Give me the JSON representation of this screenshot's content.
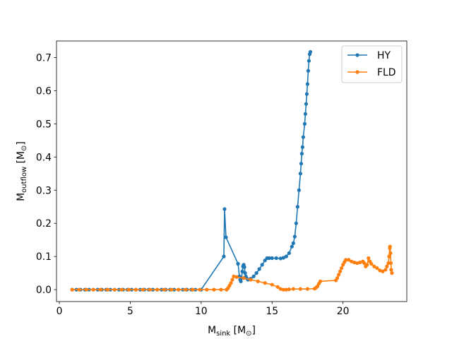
{
  "chart_data": {
    "type": "line",
    "xlabel": {
      "main": "M",
      "sub": "sink",
      "unit_open": " [M",
      "unit_sub": "⊙",
      "unit_close": "]"
    },
    "ylabel": {
      "main": "M",
      "sub": "outflow",
      "unit_open": " [M",
      "unit_sub": "⊙",
      "unit_close": "]"
    },
    "xlim": [
      -0.2,
      24.5
    ],
    "ylim": [
      -0.036,
      0.75
    ],
    "xticks": [
      0,
      5,
      10,
      15,
      20
    ],
    "xtick_labels": [
      "0",
      "5",
      "10",
      "15",
      "20"
    ],
    "yticks": [
      0.0,
      0.1,
      0.2,
      0.3,
      0.4,
      0.5,
      0.6,
      0.7
    ],
    "ytick_labels": [
      "0.0",
      "0.1",
      "0.2",
      "0.3",
      "0.4",
      "0.5",
      "0.6",
      "0.7"
    ],
    "grid": false,
    "legend_position": "top-right",
    "series": [
      {
        "name": "HY",
        "color": "#1f77b4",
        "marker": "circle",
        "points": [
          [
            0.9,
            0.0
          ],
          [
            1.2,
            0.0
          ],
          [
            1.5,
            0.0
          ],
          [
            1.8,
            0.0
          ],
          [
            2.1,
            0.0
          ],
          [
            2.4,
            0.0
          ],
          [
            2.7,
            0.0
          ],
          [
            3.0,
            0.0
          ],
          [
            3.3,
            0.0
          ],
          [
            3.6,
            0.0
          ],
          [
            3.9,
            0.0
          ],
          [
            4.2,
            0.0
          ],
          [
            4.5,
            0.0
          ],
          [
            4.8,
            0.0
          ],
          [
            5.1,
            0.0
          ],
          [
            5.4,
            0.0
          ],
          [
            5.7,
            0.0
          ],
          [
            6.0,
            0.0
          ],
          [
            6.3,
            0.0
          ],
          [
            6.6,
            0.0
          ],
          [
            6.9,
            0.0
          ],
          [
            7.2,
            0.0
          ],
          [
            7.5,
            0.0
          ],
          [
            7.8,
            0.0
          ],
          [
            8.1,
            0.0
          ],
          [
            8.4,
            0.0
          ],
          [
            8.7,
            0.0
          ],
          [
            9.0,
            0.0
          ],
          [
            9.3,
            0.0
          ],
          [
            9.6,
            0.0
          ],
          [
            10.0,
            0.0
          ],
          [
            11.6,
            0.1
          ],
          [
            11.65,
            0.243
          ],
          [
            11.75,
            0.158
          ],
          [
            12.6,
            0.078
          ],
          [
            12.7,
            0.04
          ],
          [
            12.75,
            0.03
          ],
          [
            12.8,
            0.025
          ],
          [
            12.85,
            0.035
          ],
          [
            12.9,
            0.055
          ],
          [
            12.95,
            0.07
          ],
          [
            13.0,
            0.075
          ],
          [
            13.05,
            0.068
          ],
          [
            13.1,
            0.05
          ],
          [
            13.15,
            0.04
          ],
          [
            13.2,
            0.035
          ],
          [
            13.3,
            0.03
          ],
          [
            13.5,
            0.033
          ],
          [
            13.7,
            0.04
          ],
          [
            13.9,
            0.05
          ],
          [
            14.1,
            0.062
          ],
          [
            14.3,
            0.075
          ],
          [
            14.5,
            0.088
          ],
          [
            14.65,
            0.095
          ],
          [
            14.8,
            0.095
          ],
          [
            15.0,
            0.095
          ],
          [
            15.3,
            0.095
          ],
          [
            15.6,
            0.094
          ],
          [
            15.8,
            0.096
          ],
          [
            16.0,
            0.1
          ],
          [
            16.2,
            0.11
          ],
          [
            16.4,
            0.13
          ],
          [
            16.5,
            0.14
          ],
          [
            16.6,
            0.16
          ],
          [
            16.7,
            0.2
          ],
          [
            16.8,
            0.25
          ],
          [
            16.9,
            0.3
          ],
          [
            17.0,
            0.35
          ],
          [
            17.05,
            0.38
          ],
          [
            17.1,
            0.41
          ],
          [
            17.15,
            0.43
          ],
          [
            17.2,
            0.46
          ],
          [
            17.3,
            0.5
          ],
          [
            17.35,
            0.53
          ],
          [
            17.4,
            0.56
          ],
          [
            17.45,
            0.59
          ],
          [
            17.5,
            0.62
          ],
          [
            17.55,
            0.66
          ],
          [
            17.6,
            0.69
          ],
          [
            17.65,
            0.71
          ],
          [
            17.7,
            0.717
          ]
        ]
      },
      {
        "name": "FLD",
        "color": "#ff7f0e",
        "marker": "circle",
        "points": [
          [
            0.9,
            0.0
          ],
          [
            1.4,
            0.0
          ],
          [
            1.9,
            0.0
          ],
          [
            2.4,
            0.0
          ],
          [
            2.9,
            0.0
          ],
          [
            3.4,
            0.0
          ],
          [
            3.9,
            0.0
          ],
          [
            4.4,
            0.0
          ],
          [
            4.9,
            0.0
          ],
          [
            5.4,
            0.0
          ],
          [
            5.9,
            0.0
          ],
          [
            6.4,
            0.0
          ],
          [
            6.9,
            0.0
          ],
          [
            7.4,
            0.0
          ],
          [
            7.9,
            0.0
          ],
          [
            8.4,
            0.0
          ],
          [
            8.9,
            0.0
          ],
          [
            9.4,
            0.0
          ],
          [
            9.9,
            0.0
          ],
          [
            10.4,
            0.0
          ],
          [
            10.9,
            0.0
          ],
          [
            11.4,
            0.0
          ],
          [
            11.8,
            0.0
          ],
          [
            11.9,
            0.005
          ],
          [
            12.0,
            0.012
          ],
          [
            12.1,
            0.02
          ],
          [
            12.2,
            0.03
          ],
          [
            12.3,
            0.04
          ],
          [
            12.5,
            0.038
          ],
          [
            13.0,
            0.035
          ],
          [
            13.5,
            0.03
          ],
          [
            14.0,
            0.025
          ],
          [
            14.5,
            0.02
          ],
          [
            15.0,
            0.015
          ],
          [
            15.4,
            0.008
          ],
          [
            15.6,
            0.002
          ],
          [
            15.8,
            0.0
          ],
          [
            16.0,
            0.0
          ],
          [
            16.2,
            0.001
          ],
          [
            16.5,
            0.002
          ],
          [
            17.0,
            0.002
          ],
          [
            17.5,
            0.002
          ],
          [
            18.0,
            0.003
          ],
          [
            18.1,
            0.006
          ],
          [
            18.2,
            0.01
          ],
          [
            18.3,
            0.018
          ],
          [
            18.4,
            0.025
          ],
          [
            19.5,
            0.028
          ],
          [
            19.6,
            0.035
          ],
          [
            19.7,
            0.045
          ],
          [
            19.8,
            0.055
          ],
          [
            19.9,
            0.065
          ],
          [
            20.0,
            0.075
          ],
          [
            20.1,
            0.083
          ],
          [
            20.2,
            0.09
          ],
          [
            20.4,
            0.09
          ],
          [
            20.6,
            0.085
          ],
          [
            20.8,
            0.082
          ],
          [
            21.0,
            0.08
          ],
          [
            21.2,
            0.082
          ],
          [
            21.4,
            0.085
          ],
          [
            21.5,
            0.08
          ],
          [
            21.6,
            0.07
          ],
          [
            21.7,
            0.075
          ],
          [
            21.8,
            0.095
          ],
          [
            21.9,
            0.085
          ],
          [
            22.0,
            0.078
          ],
          [
            22.2,
            0.07
          ],
          [
            22.4,
            0.065
          ],
          [
            22.6,
            0.058
          ],
          [
            22.8,
            0.055
          ],
          [
            23.0,
            0.06
          ],
          [
            23.1,
            0.07
          ],
          [
            23.2,
            0.08
          ],
          [
            23.25,
            0.1
          ],
          [
            23.3,
            0.125
          ],
          [
            23.32,
            0.13
          ],
          [
            23.35,
            0.11
          ],
          [
            23.38,
            0.08
          ],
          [
            23.4,
            0.06
          ],
          [
            23.45,
            0.05
          ]
        ]
      }
    ]
  }
}
